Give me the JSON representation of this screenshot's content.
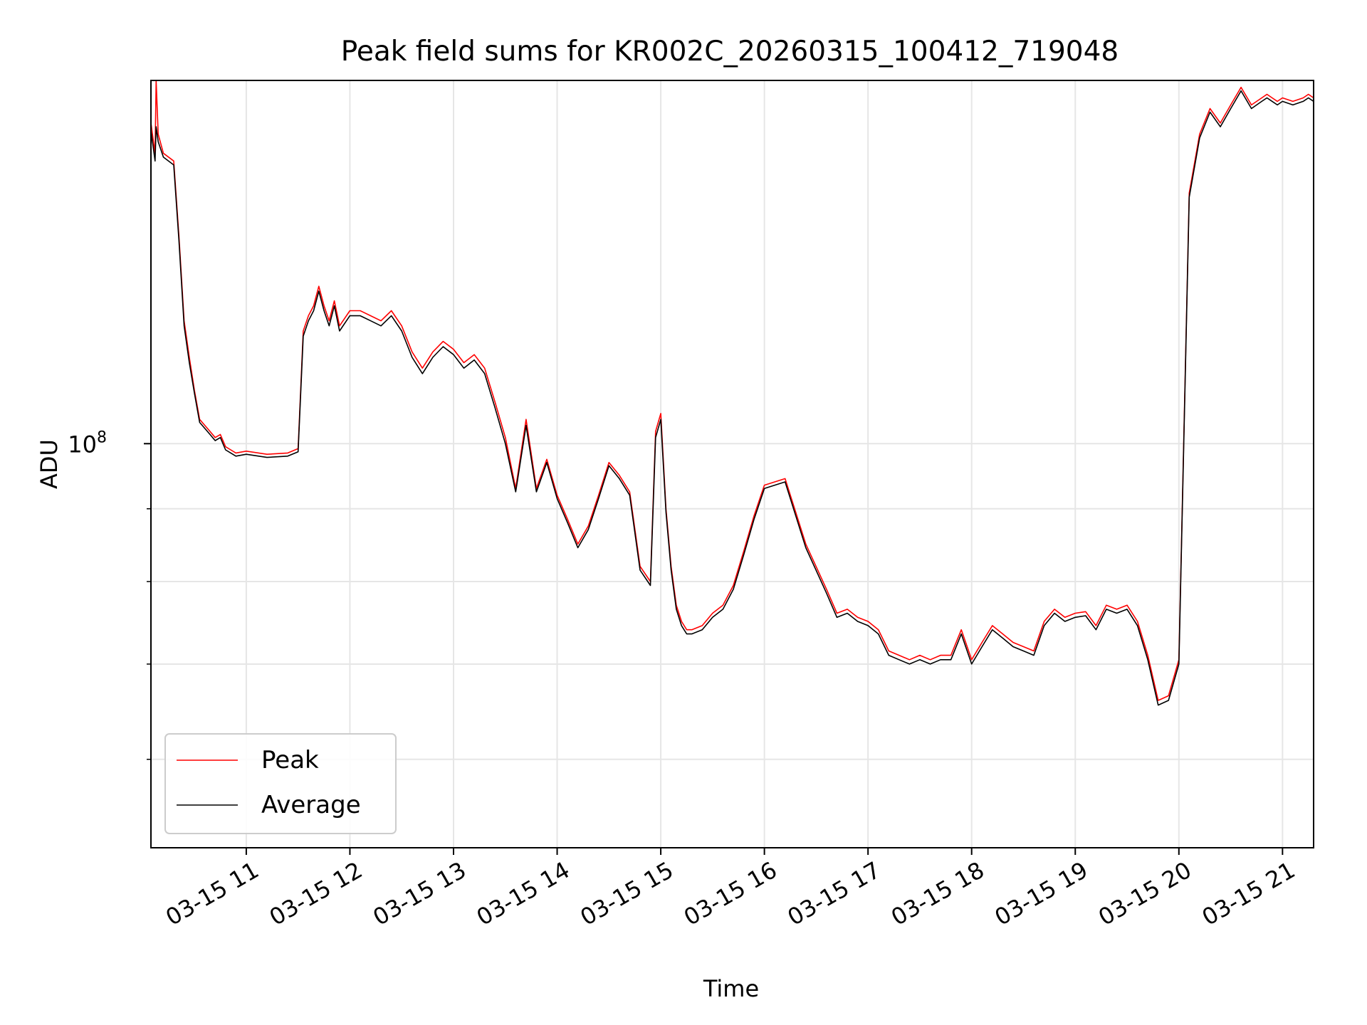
{
  "chart_data": {
    "type": "line",
    "title": "Peak field sums for KR002C_20260315_100412_719048",
    "xlabel": "Time",
    "ylabel": "ADU",
    "yscale": "log",
    "ylim": [
      52000000,
      180000000
    ],
    "y_major_tick": {
      "value": 100000000,
      "base": "10",
      "exponent": "8"
    },
    "y_minor_ticks": [
      60000000,
      70000000,
      80000000,
      90000000
    ],
    "xlim": [
      10.08,
      21.3
    ],
    "x_ticks": [
      11,
      12,
      13,
      14,
      15,
      16,
      17,
      18,
      19,
      20,
      21
    ],
    "x_tick_labels": [
      "03-15 11",
      "03-15 12",
      "03-15 13",
      "03-15 14",
      "03-15 15",
      "03-15 16",
      "03-15 17",
      "03-15 18",
      "03-15 19",
      "03-15 20",
      "03-15 21"
    ],
    "grid": true,
    "legend": {
      "position": "lower-left",
      "entries": [
        {
          "label": "Peak",
          "color": "#ff0000"
        },
        {
          "label": "Average",
          "color": "#000000"
        }
      ]
    },
    "series": [
      {
        "name": "Peak",
        "color": "#ff0000",
        "x": [
          10.08,
          10.12,
          10.13,
          10.15,
          10.2,
          10.3,
          10.35,
          10.4,
          10.45,
          10.5,
          10.55,
          10.6,
          10.65,
          10.7,
          10.75,
          10.8,
          10.85,
          10.9,
          11.0,
          11.2,
          11.4,
          11.5,
          11.55,
          11.6,
          11.65,
          11.7,
          11.75,
          11.8,
          11.85,
          11.9,
          12.0,
          12.1,
          12.2,
          12.3,
          12.4,
          12.5,
          12.6,
          12.7,
          12.8,
          12.9,
          13.0,
          13.1,
          13.2,
          13.3,
          13.4,
          13.5,
          13.6,
          13.7,
          13.8,
          13.9,
          14.0,
          14.1,
          14.2,
          14.3,
          14.4,
          14.5,
          14.6,
          14.7,
          14.8,
          14.9,
          14.95,
          15.0,
          15.05,
          15.1,
          15.15,
          15.2,
          15.25,
          15.3,
          15.4,
          15.5,
          15.6,
          15.7,
          15.8,
          15.9,
          16.0,
          16.2,
          16.4,
          16.6,
          16.7,
          16.8,
          16.9,
          17.0,
          17.1,
          17.2,
          17.3,
          17.4,
          17.5,
          17.6,
          17.7,
          17.8,
          17.9,
          18.0,
          18.1,
          18.2,
          18.3,
          18.4,
          18.5,
          18.6,
          18.7,
          18.8,
          18.9,
          19.0,
          19.1,
          19.2,
          19.3,
          19.4,
          19.5,
          19.6,
          19.7,
          19.8,
          19.9,
          20.0,
          20.1,
          20.2,
          20.3,
          20.4,
          20.5,
          20.6,
          20.7,
          20.8,
          20.85,
          20.9,
          20.95,
          21.0,
          21.1,
          21.2,
          21.25,
          21.3
        ],
        "y": [
          168000000,
          160000000,
          180000000,
          165000000,
          160000000,
          158000000,
          140000000,
          122000000,
          115000000,
          109000000,
          104000000,
          103000000,
          102000000,
          101000000,
          101500000,
          99500000,
          99000000,
          98500000,
          98800000,
          98300000,
          98500000,
          99200000,
          120000000,
          123000000,
          125000000,
          129000000,
          125000000,
          122000000,
          126000000,
          121000000,
          124000000,
          124000000,
          123000000,
          122000000,
          124000000,
          121000000,
          116000000,
          113000000,
          116000000,
          118000000,
          116500000,
          114000000,
          115500000,
          113000000,
          107000000,
          101000000,
          93000000,
          104000000,
          93000000,
          97500000,
          92000000,
          88500000,
          85000000,
          87500000,
          92000000,
          97000000,
          95000000,
          92500000,
          82000000,
          80000000,
          102000000,
          105000000,
          90000000,
          82000000,
          77000000,
          75000000,
          74000000,
          74000000,
          74500000,
          76000000,
          77000000,
          79500000,
          84000000,
          89000000,
          93500000,
          94500000,
          85000000,
          79000000,
          76000000,
          76500000,
          75500000,
          75000000,
          74000000,
          71500000,
          71000000,
          70500000,
          71000000,
          70500000,
          71000000,
          71000000,
          74000000,
          70500000,
          72500000,
          74500000,
          73500000,
          72500000,
          72000000,
          71500000,
          75000000,
          76500000,
          75500000,
          76000000,
          76200000,
          74500000,
          77000000,
          76500000,
          77000000,
          75000000,
          71000000,
          66000000,
          66500000,
          70500000,
          150000000,
          165000000,
          172000000,
          168000000,
          173000000,
          178000000,
          173000000,
          175000000,
          176000000,
          175000000,
          174000000,
          175000000,
          174000000,
          175000000,
          176000000,
          175000000
        ]
      },
      {
        "name": "Average",
        "color": "#000000",
        "x": [
          10.08,
          10.12,
          10.13,
          10.15,
          10.2,
          10.3,
          10.35,
          10.4,
          10.45,
          10.5,
          10.55,
          10.6,
          10.65,
          10.7,
          10.75,
          10.8,
          10.85,
          10.9,
          11.0,
          11.2,
          11.4,
          11.5,
          11.55,
          11.6,
          11.65,
          11.7,
          11.75,
          11.8,
          11.85,
          11.9,
          12.0,
          12.1,
          12.2,
          12.3,
          12.4,
          12.5,
          12.6,
          12.7,
          12.8,
          12.9,
          13.0,
          13.1,
          13.2,
          13.3,
          13.4,
          13.5,
          13.6,
          13.7,
          13.8,
          13.9,
          14.0,
          14.1,
          14.2,
          14.3,
          14.4,
          14.5,
          14.6,
          14.7,
          14.8,
          14.9,
          14.95,
          15.0,
          15.05,
          15.1,
          15.15,
          15.2,
          15.25,
          15.3,
          15.4,
          15.5,
          15.6,
          15.7,
          15.8,
          15.9,
          16.0,
          16.2,
          16.4,
          16.6,
          16.7,
          16.8,
          16.9,
          17.0,
          17.1,
          17.2,
          17.3,
          17.4,
          17.5,
          17.6,
          17.7,
          17.8,
          17.9,
          18.0,
          18.1,
          18.2,
          18.3,
          18.4,
          18.5,
          18.6,
          18.7,
          18.8,
          18.9,
          19.0,
          19.1,
          19.2,
          19.3,
          19.4,
          19.5,
          19.6,
          19.7,
          19.8,
          19.9,
          20.0,
          20.1,
          20.2,
          20.3,
          20.4,
          20.5,
          20.6,
          20.7,
          20.8,
          20.85,
          20.9,
          20.95,
          21.0,
          21.1,
          21.2,
          21.25,
          21.3
        ],
        "y": [
          166000000,
          158000000,
          167000000,
          163000000,
          159000000,
          157000000,
          139000000,
          121000000,
          114000000,
          108500000,
          103500000,
          102500000,
          101500000,
          100500000,
          101000000,
          99000000,
          98500000,
          98000000,
          98300000,
          97800000,
          98000000,
          98700000,
          119000000,
          122000000,
          124000000,
          128000000,
          124000000,
          121000000,
          125000000,
          120000000,
          123000000,
          123000000,
          122000000,
          121000000,
          123000000,
          120000000,
          115000000,
          112000000,
          115000000,
          117000000,
          115500000,
          113000000,
          114500000,
          112000000,
          106000000,
          100000000,
          92500000,
          103000000,
          92500000,
          97000000,
          91500000,
          88000000,
          84500000,
          87000000,
          91500000,
          96500000,
          94500000,
          92000000,
          81500000,
          79500000,
          101000000,
          104000000,
          89500000,
          81500000,
          76500000,
          74500000,
          73500000,
          73500000,
          74000000,
          75500000,
          76500000,
          79000000,
          83500000,
          88500000,
          93000000,
          94000000,
          84500000,
          78500000,
          75500000,
          76000000,
          75000000,
          74500000,
          73500000,
          71000000,
          70500000,
          70000000,
          70500000,
          70000000,
          70500000,
          70500000,
          73500000,
          70000000,
          72000000,
          74000000,
          73000000,
          72000000,
          71500000,
          71000000,
          74500000,
          76000000,
          75000000,
          75500000,
          75700000,
          74000000,
          76500000,
          76000000,
          76500000,
          74500000,
          70500000,
          65500000,
          66000000,
          70000000,
          149000000,
          164000000,
          171000000,
          167000000,
          172000000,
          177000000,
          172000000,
          174000000,
          175000000,
          174000000,
          173000000,
          174000000,
          173000000,
          174000000,
          175000000,
          174000000
        ]
      }
    ]
  }
}
